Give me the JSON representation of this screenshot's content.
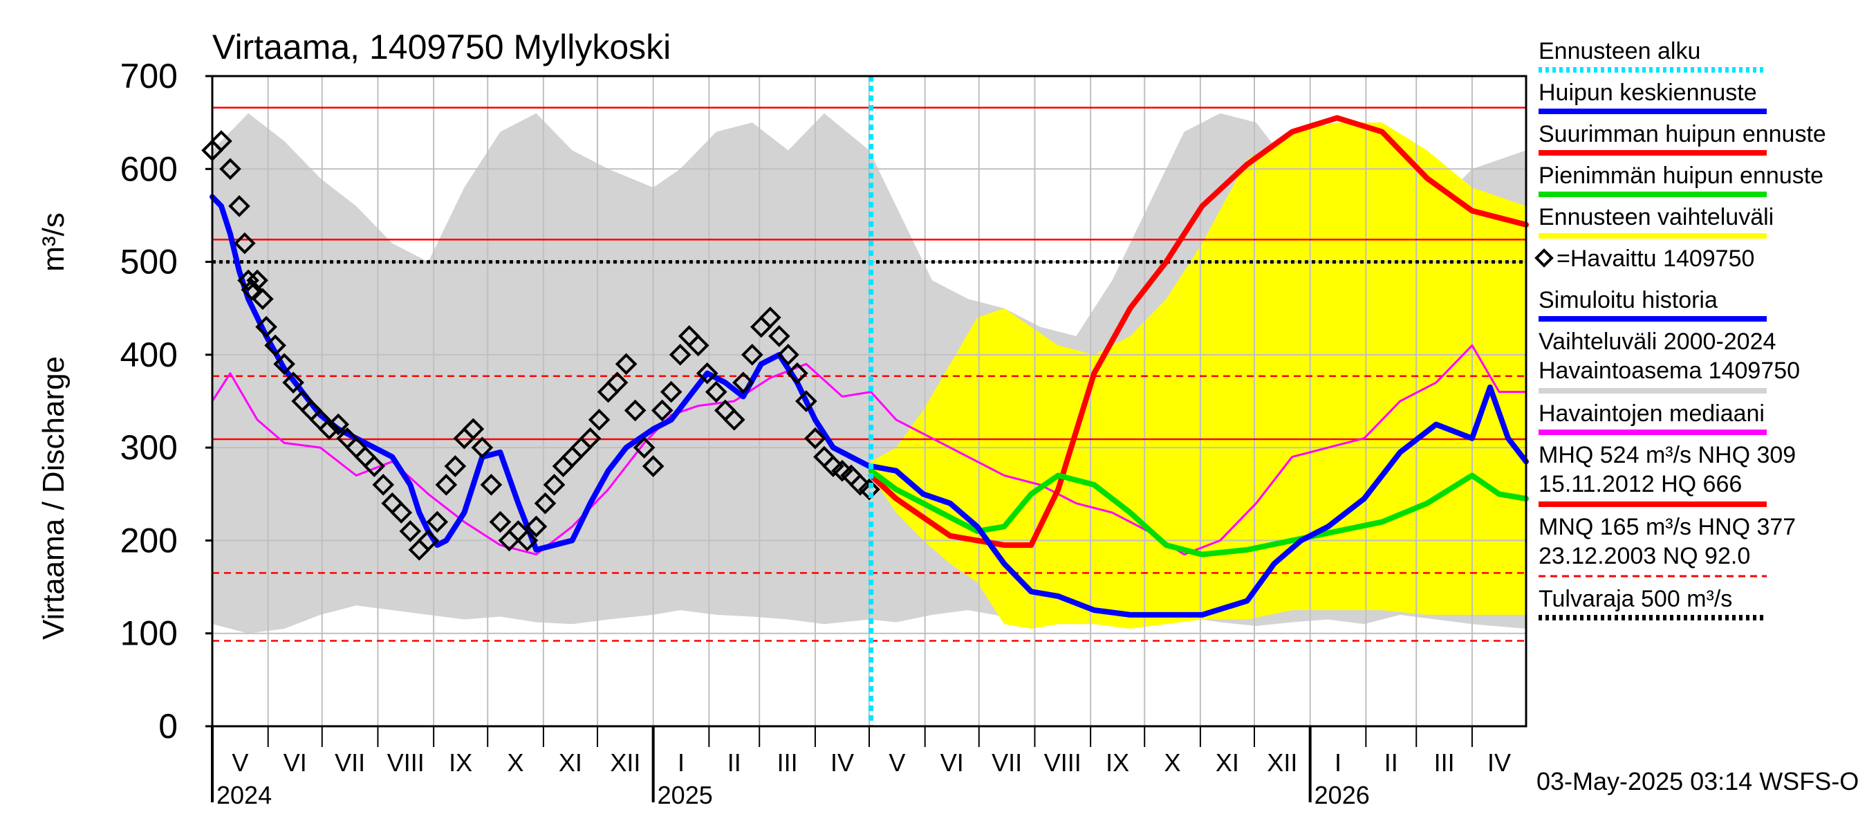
{
  "chart_data": {
    "type": "line",
    "title": "Virtaama, 1409750 Myllykoski",
    "ylabel": "Virtaama / Discharge",
    "yunit": "m³/s",
    "ylim": [
      0,
      700
    ],
    "yticks": [
      0,
      100,
      200,
      300,
      400,
      500,
      600,
      700
    ],
    "x_range_days": [
      0,
      730
    ],
    "months": [
      {
        "label": "V",
        "start": 0,
        "end": 31
      },
      {
        "label": "VI",
        "start": 31,
        "end": 61
      },
      {
        "label": "VII",
        "start": 61,
        "end": 92
      },
      {
        "label": "VIII",
        "start": 92,
        "end": 123
      },
      {
        "label": "IX",
        "start": 123,
        "end": 153
      },
      {
        "label": "X",
        "start": 153,
        "end": 184
      },
      {
        "label": "XI",
        "start": 184,
        "end": 214
      },
      {
        "label": "XII",
        "start": 214,
        "end": 245
      },
      {
        "label": "I",
        "start": 245,
        "end": 276
      },
      {
        "label": "II",
        "start": 276,
        "end": 304
      },
      {
        "label": "III",
        "start": 304,
        "end": 335
      },
      {
        "label": "IV",
        "start": 335,
        "end": 365
      },
      {
        "label": "V",
        "start": 365,
        "end": 396
      },
      {
        "label": "VI",
        "start": 396,
        "end": 426
      },
      {
        "label": "VII",
        "start": 426,
        "end": 457
      },
      {
        "label": "VIII",
        "start": 457,
        "end": 488
      },
      {
        "label": "IX",
        "start": 488,
        "end": 518
      },
      {
        "label": "X",
        "start": 518,
        "end": 549
      },
      {
        "label": "XI",
        "start": 549,
        "end": 579
      },
      {
        "label": "XII",
        "start": 579,
        "end": 610
      },
      {
        "label": "I",
        "start": 610,
        "end": 641
      },
      {
        "label": "II",
        "start": 641,
        "end": 669
      },
      {
        "label": "III",
        "start": 669,
        "end": 700
      },
      {
        "label": "IV",
        "start": 700,
        "end": 730
      }
    ],
    "years": [
      {
        "label": "2024",
        "day": 0
      },
      {
        "label": "2025",
        "day": 245
      },
      {
        "label": "2026",
        "day": 610
      }
    ],
    "forecast_start_day": 366,
    "reference_lines": [
      {
        "name": "HQ",
        "value": 666,
        "style": "solid",
        "color": "#ff0000"
      },
      {
        "name": "MHQ",
        "value": 524,
        "style": "solid",
        "color": "#ff0000"
      },
      {
        "name": "Tulvaraja",
        "value": 500,
        "style": "dotted",
        "color": "#000000"
      },
      {
        "name": "HNQ",
        "value": 377,
        "style": "dashed",
        "color": "#ff0000"
      },
      {
        "name": "NHQ",
        "value": 309,
        "style": "solid",
        "color": "#ff0000"
      },
      {
        "name": "MNQ",
        "value": 165,
        "style": "dashed",
        "color": "#ff0000"
      },
      {
        "name": "NQ",
        "value": 92,
        "style": "dashed",
        "color": "#ff0000"
      }
    ],
    "series": [
      {
        "name": "Vaihteluväli 2000-2024 Havaintoasema 1409750",
        "type": "band",
        "color": "#d3d3d3",
        "x": [
          0,
          20,
          40,
          60,
          80,
          100,
          120,
          140,
          160,
          180,
          200,
          220,
          245,
          260,
          280,
          300,
          320,
          340,
          365,
          380,
          400,
          420,
          440,
          460,
          480,
          500,
          520,
          540,
          560,
          580,
          600,
          620,
          640,
          660,
          680,
          700,
          730
        ],
        "low": [
          110,
          100,
          105,
          120,
          130,
          125,
          120,
          115,
          118,
          112,
          110,
          115,
          120,
          125,
          120,
          118,
          115,
          110,
          115,
          112,
          120,
          125,
          118,
          110,
          115,
          110,
          120,
          118,
          112,
          108,
          112,
          115,
          110,
          120,
          115,
          110,
          105
        ],
        "high": [
          620,
          660,
          630,
          590,
          560,
          520,
          500,
          580,
          640,
          660,
          620,
          600,
          580,
          600,
          640,
          650,
          620,
          660,
          620,
          560,
          480,
          460,
          450,
          430,
          420,
          480,
          560,
          640,
          660,
          650,
          600,
          620,
          600,
          580,
          560,
          600,
          620
        ]
      },
      {
        "name": "Ennusteen vaihteluväli",
        "type": "band",
        "color": "#ffff00",
        "x": [
          366,
          380,
          395,
          410,
          425,
          440,
          455,
          470,
          490,
          510,
          530,
          550,
          575,
          600,
          625,
          650,
          675,
          700,
          730
        ],
        "low": [
          270,
          230,
          200,
          175,
          155,
          110,
          105,
          110,
          110,
          105,
          110,
          115,
          115,
          125,
          125,
          125,
          120,
          120,
          120
        ],
        "high": [
          285,
          300,
          340,
          390,
          440,
          450,
          430,
          410,
          400,
          420,
          460,
          520,
          610,
          640,
          650,
          650,
          620,
          580,
          560
        ]
      },
      {
        "name": "Havaintojen mediaani",
        "type": "line",
        "color": "#ff00ff",
        "x": [
          0,
          10,
          25,
          40,
          60,
          80,
          100,
          120,
          140,
          160,
          180,
          200,
          220,
          240,
          255,
          270,
          290,
          310,
          330,
          350,
          366,
          380,
          400,
          420,
          440,
          460,
          480,
          500,
          520,
          540,
          560,
          580,
          600,
          620,
          640,
          660,
          680,
          700,
          715,
          730
        ],
        "y": [
          350,
          380,
          330,
          305,
          300,
          270,
          285,
          250,
          220,
          195,
          185,
          215,
          255,
          305,
          335,
          345,
          350,
          375,
          390,
          355,
          360,
          330,
          310,
          290,
          270,
          260,
          240,
          230,
          210,
          185,
          200,
          240,
          290,
          300,
          310,
          350,
          370,
          410,
          360,
          360
        ]
      },
      {
        "name": "Suurimman huipun ennuste",
        "type": "line",
        "color": "#ff0000",
        "x": [
          366,
          380,
          395,
          410,
          425,
          440,
          455,
          470,
          490,
          510,
          530,
          550,
          575,
          600,
          625,
          650,
          675,
          700,
          730
        ],
        "y": [
          270,
          245,
          225,
          205,
          200,
          195,
          195,
          255,
          380,
          450,
          500,
          560,
          605,
          640,
          655,
          640,
          590,
          555,
          540
        ]
      },
      {
        "name": "Pienimmän huipun ennuste",
        "type": "line",
        "color": "#00dd00",
        "x": [
          366,
          380,
          395,
          410,
          425,
          440,
          455,
          470,
          490,
          510,
          530,
          550,
          575,
          600,
          625,
          650,
          675,
          700,
          715,
          730
        ],
        "y": [
          275,
          255,
          240,
          225,
          210,
          215,
          250,
          270,
          260,
          230,
          195,
          185,
          190,
          200,
          210,
          220,
          240,
          270,
          250,
          245
        ]
      },
      {
        "name": "Huipun keskiennuste",
        "type": "line",
        "color": "#0000ff",
        "x": [
          366,
          380,
          395,
          410,
          425,
          440,
          455,
          470,
          490,
          510,
          530,
          550,
          575,
          590,
          605,
          620,
          640,
          660,
          680,
          700,
          710,
          720,
          730
        ],
        "y": [
          280,
          275,
          250,
          240,
          215,
          175,
          145,
          140,
          125,
          120,
          120,
          120,
          135,
          175,
          200,
          215,
          245,
          295,
          325,
          310,
          365,
          310,
          285
        ]
      },
      {
        "name": "Simuloitu historia",
        "type": "line",
        "color": "#0000ff",
        "x": [
          0,
          5,
          10,
          15,
          20,
          30,
          40,
          50,
          60,
          70,
          80,
          90,
          100,
          110,
          115,
          120,
          125,
          130,
          140,
          150,
          160,
          170,
          180,
          190,
          200,
          210,
          220,
          230,
          245,
          255,
          265,
          275,
          285,
          295,
          305,
          315,
          325,
          335,
          345,
          355,
          365
        ],
        "y": [
          570,
          560,
          530,
          490,
          460,
          420,
          385,
          360,
          335,
          320,
          310,
          300,
          290,
          260,
          230,
          210,
          195,
          200,
          230,
          290,
          295,
          240,
          190,
          195,
          200,
          240,
          275,
          300,
          320,
          330,
          355,
          380,
          370,
          355,
          390,
          400,
          370,
          330,
          300,
          290,
          280
        ]
      },
      {
        "name": "Havaittu 1409750",
        "type": "scatter",
        "color": "#000000",
        "x": [
          0,
          5,
          10,
          15,
          18,
          20,
          22,
          25,
          28,
          30,
          35,
          40,
          45,
          50,
          55,
          60,
          65,
          70,
          75,
          80,
          85,
          90,
          95,
          100,
          105,
          110,
          115,
          120,
          125,
          130,
          135,
          140,
          145,
          150,
          155,
          160,
          165,
          170,
          175,
          180,
          185,
          190,
          195,
          200,
          205,
          210,
          215,
          220,
          225,
          230,
          235,
          240,
          245,
          250,
          255,
          260,
          265,
          270,
          275,
          280,
          285,
          290,
          295,
          300,
          305,
          310,
          315,
          320,
          325,
          330,
          335,
          340,
          345,
          350,
          355,
          360,
          365
        ],
        "y": [
          620,
          630,
          600,
          560,
          520,
          480,
          470,
          480,
          460,
          430,
          410,
          390,
          370,
          350,
          340,
          330,
          320,
          325,
          310,
          300,
          290,
          280,
          260,
          240,
          230,
          210,
          190,
          200,
          220,
          260,
          280,
          310,
          320,
          300,
          260,
          220,
          200,
          210,
          200,
          215,
          240,
          260,
          280,
          290,
          300,
          310,
          330,
          360,
          370,
          390,
          340,
          300,
          280,
          340,
          360,
          400,
          420,
          410,
          380,
          360,
          340,
          330,
          370,
          400,
          430,
          440,
          420,
          400,
          380,
          350,
          310,
          290,
          280,
          275,
          270,
          260,
          255
        ]
      }
    ]
  },
  "legend": [
    {
      "label": "Ennusteen alku",
      "color": "#00e5ff",
      "style": "dotted"
    },
    {
      "label": "Huipun keskiennuste",
      "color": "#0000ff",
      "style": "solid"
    },
    {
      "label": "Suurimman huipun ennuste",
      "color": "#ff0000",
      "style": "solid"
    },
    {
      "label": "Pienimmän huipun ennuste",
      "color": "#00dd00",
      "style": "solid"
    },
    {
      "label": "Ennusteen vaihteluväli",
      "color": "#ffff00",
      "style": "solid"
    },
    {
      "label": "=Havaittu 1409750",
      "color": "#000000",
      "style": "marker"
    },
    {
      "label": "Simuloitu historia",
      "color": "#0000ff",
      "style": "solid"
    },
    {
      "label": "Vaihteluväli 2000-2024",
      "label2": " Havaintoasema 1409750",
      "color": "#d3d3d3",
      "style": "solid"
    },
    {
      "label": "Havaintojen mediaani",
      "color": "#ff00ff",
      "style": "solid"
    },
    {
      "label": "MHQ  524 m³/s NHQ  309",
      "label2": "15.11.2012 HQ  666",
      "color": "#ff0000",
      "style": "solid"
    },
    {
      "label": "MNQ  165 m³/s HNQ  377",
      "label2": "23.12.2003 NQ 92.0",
      "color": "#ff0000",
      "style": "dashed"
    },
    {
      "label": "Tulvaraja 500 m³/s",
      "color": "#000000",
      "style": "dotted"
    }
  ],
  "footer": "03-May-2025 03:14 WSFS-O",
  "colors": {
    "grid": "#c0c0c0",
    "axis": "#000000"
  }
}
